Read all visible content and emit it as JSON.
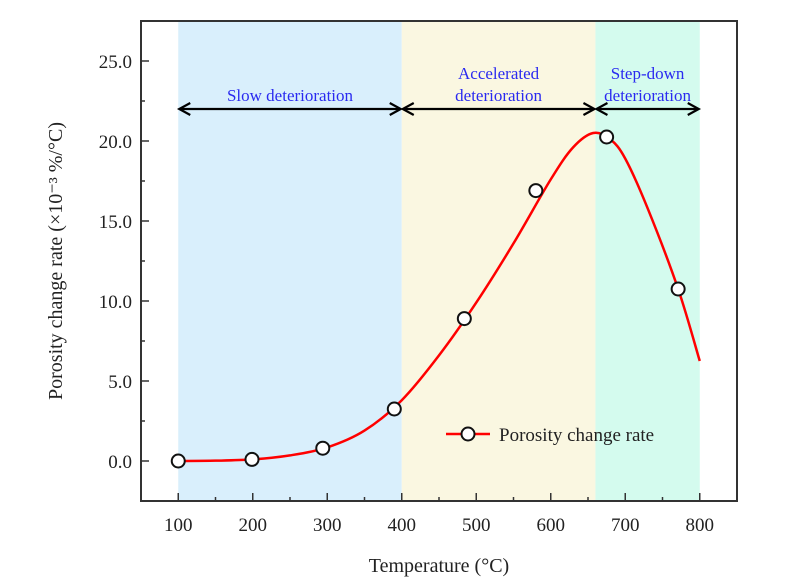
{
  "chart_data": {
    "type": "line",
    "title": "",
    "xlabel": "Temperature (°C)",
    "ylabel": "Porosity change rate  (×10⁻³ %/°C)",
    "xlim": [
      50,
      850
    ],
    "ylim": [
      -2.5,
      27.5
    ],
    "xticks": [
      100,
      200,
      300,
      400,
      500,
      600,
      700,
      800
    ],
    "xtick_labels": [
      "100",
      "200",
      "300",
      "400",
      "500",
      "600",
      "700",
      "800"
    ],
    "yticks": [
      0,
      5,
      10,
      15,
      20,
      25
    ],
    "ytick_labels": [
      "0.0",
      "5.0",
      "10.0",
      "15.0",
      "20.0",
      "25.0"
    ],
    "grid": false,
    "regions": [
      {
        "name": "slow",
        "label_lines": [
          "Slow deterioration"
        ],
        "x_start": 100,
        "x_end": 400,
        "color": "#d9effc"
      },
      {
        "name": "accelerated",
        "label_lines": [
          "Accelerated",
          "deterioration"
        ],
        "x_start": 400,
        "x_end": 660,
        "color": "#faf7e1"
      },
      {
        "name": "step-down",
        "label_lines": [
          "Step-down",
          "deterioration"
        ],
        "x_start": 660,
        "x_end": 800,
        "color": "#d4fbee"
      }
    ],
    "region_arrow_y": 22,
    "series": [
      {
        "name": "Porosity change rate",
        "color": "#ff0000",
        "marker": "open-circle",
        "x": [
          100,
          199,
          294,
          390,
          484,
          580,
          675,
          771
        ],
        "values": [
          0.0,
          0.1,
          0.8,
          3.25,
          8.9,
          16.9,
          20.25,
          10.75
        ]
      }
    ],
    "fit_curve": {
      "x": [
        100,
        150,
        200,
        250,
        300,
        350,
        400,
        450,
        500,
        550,
        600,
        630,
        657,
        680,
        700,
        730,
        771,
        800
      ],
      "y": [
        0.0,
        0.02,
        0.1,
        0.35,
        0.85,
        1.9,
        3.8,
        6.6,
        9.9,
        13.6,
        17.6,
        19.6,
        20.5,
        20.1,
        18.9,
        15.8,
        10.75,
        6.25
      ]
    },
    "legend": {
      "position": "bottom-right",
      "entries": [
        "Porosity change rate"
      ]
    }
  }
}
